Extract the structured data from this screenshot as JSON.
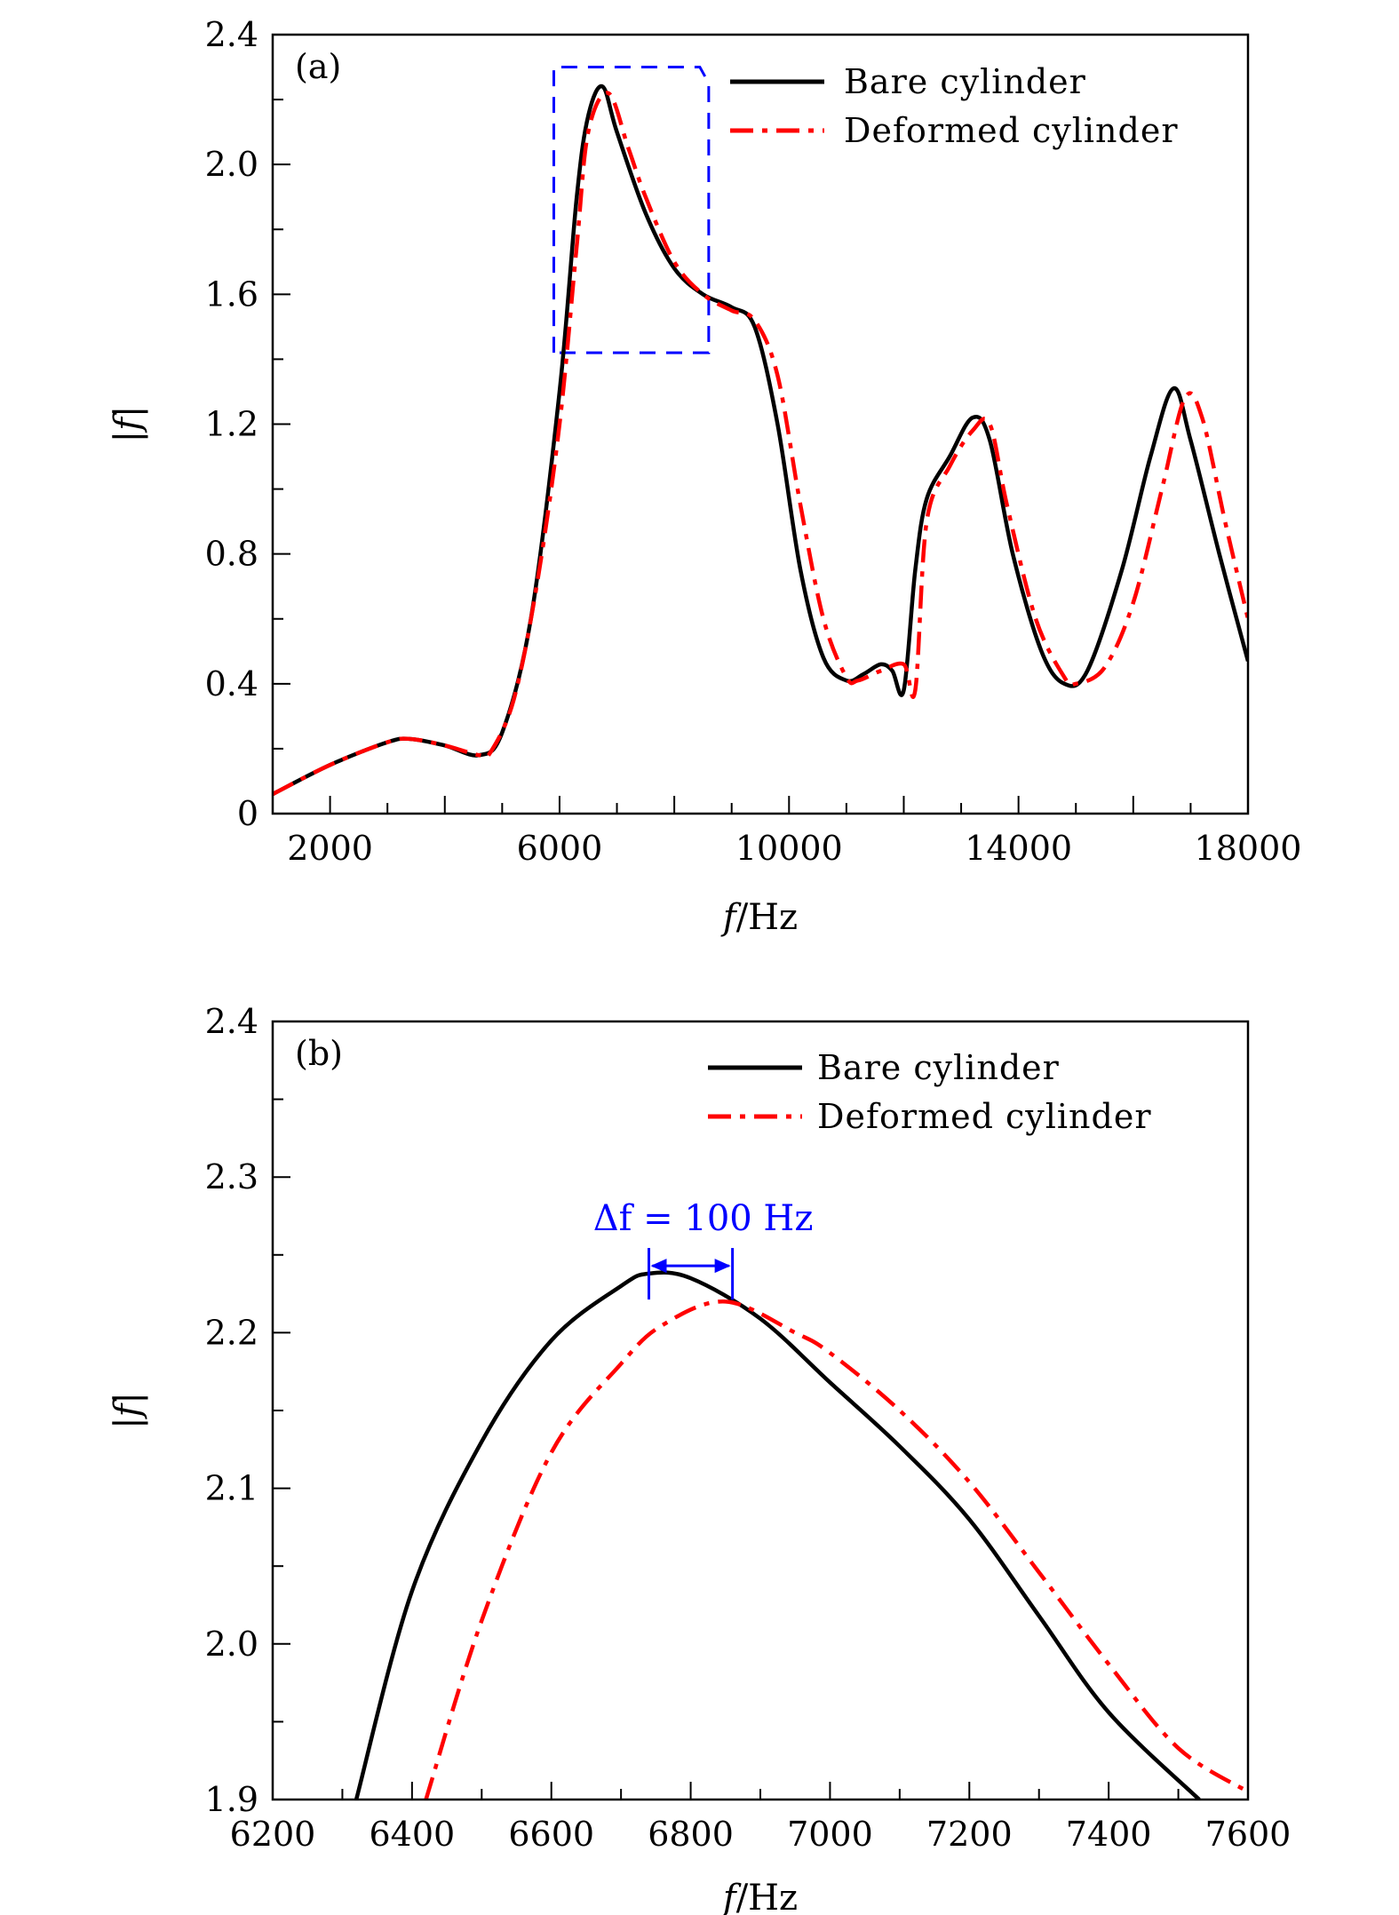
{
  "chart_data": [
    {
      "type": "line",
      "panel_label": "(a)",
      "xlabel_italic": "f",
      "xlabel_rest": "/Hz",
      "ylabel": "|f|",
      "xlim": [
        1000,
        18000
      ],
      "ylim": [
        0,
        2.4
      ],
      "xticks": [
        2000,
        6000,
        10000,
        14000,
        18000
      ],
      "xtick_labels": [
        "2000",
        "6000",
        "10000",
        "14000",
        "18000"
      ],
      "yticks": [
        0,
        0.4,
        0.8,
        1.2,
        1.6,
        2.0,
        2.4
      ],
      "ytick_labels": [
        "0",
        "0.4",
        "0.8",
        "1.2",
        "1.6",
        "2.0",
        "2.4"
      ],
      "legend_position": "top-right",
      "zoom_box": {
        "x": [
          5900,
          8600
        ],
        "y": [
          1.42,
          2.3
        ],
        "color": "#0000ff"
      },
      "series": [
        {
          "name": "Bare cylinder",
          "color": "#000000",
          "style": "solid",
          "x": [
            1000,
            2000,
            3000,
            3400,
            4000,
            4600,
            5000,
            5500,
            6000,
            6300,
            6500,
            6750,
            7000,
            7500,
            8000,
            8500,
            9000,
            9400,
            9800,
            10200,
            10600,
            11000,
            11300,
            11600,
            11800,
            12000,
            12200,
            12400,
            12800,
            13200,
            13500,
            13900,
            14400,
            14800,
            15200,
            15800,
            16300,
            16700,
            17000,
            17500,
            18000
          ],
          "y": [
            0.06,
            0.15,
            0.22,
            0.23,
            0.21,
            0.18,
            0.25,
            0.6,
            1.3,
            1.9,
            2.15,
            2.24,
            2.1,
            1.85,
            1.68,
            1.6,
            1.56,
            1.5,
            1.2,
            0.75,
            0.48,
            0.41,
            0.43,
            0.46,
            0.44,
            0.38,
            0.75,
            0.97,
            1.1,
            1.22,
            1.15,
            0.8,
            0.5,
            0.4,
            0.44,
            0.75,
            1.1,
            1.31,
            1.15,
            0.8,
            0.47
          ]
        },
        {
          "name": "Deformed cylinder",
          "color": "#ff0000",
          "style": "dashdot",
          "x": [
            1000,
            2000,
            3000,
            3400,
            4000,
            4600,
            4800,
            5200,
            5600,
            6000,
            6300,
            6500,
            6850,
            7200,
            7500,
            8000,
            8500,
            9000,
            9400,
            9800,
            10200,
            10600,
            11000,
            11200,
            11600,
            12000,
            12200,
            12400,
            12800,
            13200,
            13500,
            13800,
            14300,
            14800,
            15000,
            15500,
            16000,
            16500,
            16900,
            17200,
            17600,
            18000
          ],
          "y": [
            0.06,
            0.15,
            0.22,
            0.23,
            0.21,
            0.18,
            0.19,
            0.35,
            0.7,
            1.2,
            1.75,
            2.1,
            2.22,
            2.05,
            1.9,
            1.7,
            1.6,
            1.55,
            1.52,
            1.35,
            0.95,
            0.6,
            0.42,
            0.41,
            0.44,
            0.46,
            0.38,
            0.9,
            1.07,
            1.18,
            1.2,
            0.95,
            0.6,
            0.42,
            0.4,
            0.45,
            0.65,
            1.0,
            1.28,
            1.22,
            0.9,
            0.6
          ]
        }
      ]
    },
    {
      "type": "line",
      "panel_label": "(b)",
      "xlabel_italic": "f",
      "xlabel_rest": "/Hz",
      "ylabel": "|f|",
      "xlim": [
        6200,
        7600
      ],
      "ylim": [
        1.9,
        2.4
      ],
      "xticks": [
        6200,
        6400,
        6600,
        6800,
        7000,
        7200,
        7400,
        7600
      ],
      "xtick_labels": [
        "6200",
        "6400",
        "6600",
        "6800",
        "7000",
        "7200",
        "7400",
        "7600"
      ],
      "yticks": [
        1.9,
        2.0,
        2.1,
        2.2,
        2.3,
        2.4
      ],
      "ytick_labels": [
        "1.9",
        "2.0",
        "2.1",
        "2.2",
        "2.3",
        "2.4"
      ],
      "legend_position": "top-right",
      "annotation": {
        "text": "Δf = 100 Hz",
        "x_from": 6740,
        "x_to": 6860,
        "y": 2.243,
        "color": "#0000ff"
      },
      "series": [
        {
          "name": "Bare cylinder",
          "color": "#000000",
          "style": "solid",
          "x": [
            6320,
            6400,
            6500,
            6600,
            6700,
            6740,
            6800,
            6900,
            7000,
            7100,
            7200,
            7300,
            7400,
            7530
          ],
          "y": [
            1.9,
            2.034,
            2.13,
            2.195,
            2.23,
            2.238,
            2.235,
            2.209,
            2.168,
            2.127,
            2.08,
            2.018,
            1.956,
            1.9
          ]
        },
        {
          "name": "Deformed cylinder",
          "color": "#ff0000",
          "style": "dashdot",
          "x": [
            6420,
            6500,
            6600,
            6700,
            6760,
            6850,
            6950,
            7000,
            7100,
            7200,
            7300,
            7400,
            7500,
            7600
          ],
          "y": [
            1.9,
            2.015,
            2.123,
            2.18,
            2.205,
            2.22,
            2.2,
            2.187,
            2.15,
            2.104,
            2.046,
            1.987,
            1.933,
            1.905
          ]
        }
      ]
    }
  ]
}
